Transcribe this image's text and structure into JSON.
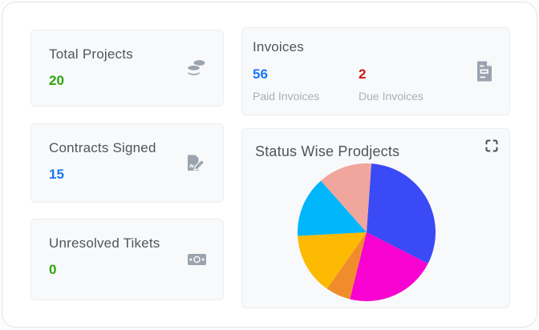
{
  "panel": {
    "name": "dashboard"
  },
  "cards": {
    "total_projects": {
      "title": "Total Projects",
      "value": "20",
      "value_color": "#2ca50a",
      "icon": "coins-icon"
    },
    "contracts_signed": {
      "title": "Contracts Signed",
      "value": "15",
      "value_color": "#1877f2",
      "icon": "file-signature-icon"
    },
    "unresolved_tickets": {
      "title": "Unresolved Tikets",
      "value": "0",
      "value_color": "#2ca50a",
      "icon": "money-bill-icon"
    },
    "invoices": {
      "title": "Invoices",
      "icon": "file-invoice-icon",
      "stats": [
        {
          "value": "56",
          "label": "Paid Invoices",
          "value_color": "#1877f2"
        },
        {
          "value": "2",
          "label": "Due Invoices",
          "value_color": "#cc1212"
        }
      ]
    },
    "status_chart": {
      "title": "Status Wise Prodjects",
      "icon": "expand-icon"
    }
  },
  "chart_data": {
    "type": "pie",
    "title": "Status Wise Prodjects",
    "legend": "none",
    "data_labels": "none",
    "start_angle_deg_from_top": 4,
    "segments": [
      {
        "name": "blue",
        "sweep_deg": 113,
        "percent": 31.4,
        "color": "#3b4af7"
      },
      {
        "name": "magenta",
        "sweep_deg": 77,
        "percent": 21.4,
        "color": "#f702d0"
      },
      {
        "name": "orange",
        "sweep_deg": 21,
        "percent": 5.8,
        "color": "#f18c2d"
      },
      {
        "name": "amber",
        "sweep_deg": 52,
        "percent": 14.4,
        "color": "#fdba02"
      },
      {
        "name": "cyan",
        "sweep_deg": 51.5,
        "percent": 14.3,
        "color": "#01b6fa"
      },
      {
        "name": "salmon",
        "sweep_deg": 45.5,
        "percent": 12.6,
        "color": "#f0a69d"
      }
    ]
  },
  "colors": {
    "card_background": "#f8f9fa",
    "card_border": "#ebedef",
    "title_text": "#4f555c",
    "muted_label": "#a9b0b9",
    "icon_gray": "#9aa3ae",
    "expand_icon": "#454b54",
    "green": "#2ca50a",
    "blue": "#1877f2",
    "red": "#cc1212"
  }
}
